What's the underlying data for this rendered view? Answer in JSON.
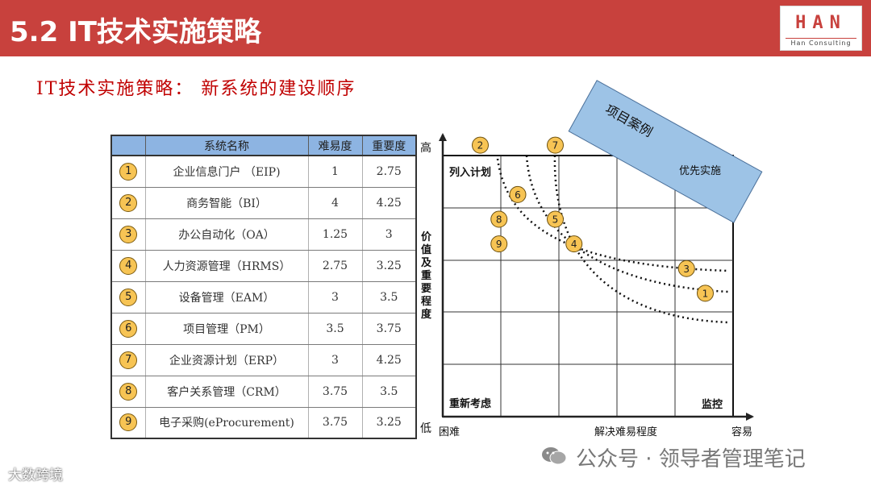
{
  "header": {
    "title": "5.2 IT技术实施策略",
    "logo_text": "HAN",
    "logo_sub": "Han Consulting"
  },
  "subtitle": "IT技术实施策略：  新系统的建设顺序",
  "table": {
    "headers": [
      "",
      "系统名称",
      "难易度",
      "重要度"
    ],
    "rows": [
      {
        "num": "1",
        "name": "企业信息门户  （EIP)",
        "difficulty": "1",
        "importance": "2.75"
      },
      {
        "num": "2",
        "name": "商务智能（BI）",
        "difficulty": "4",
        "importance": "4.25"
      },
      {
        "num": "3",
        "name": "办公自动化（OA）",
        "difficulty": "1.25",
        "importance": "3"
      },
      {
        "num": "4",
        "name": "人力资源管理（HRMS）",
        "difficulty": "2.75",
        "importance": "3.25"
      },
      {
        "num": "5",
        "name": "设备管理（EAM）",
        "difficulty": "3",
        "importance": "3.5"
      },
      {
        "num": "6",
        "name": "项目管理（PM）",
        "difficulty": "3.5",
        "importance": "3.75"
      },
      {
        "num": "7",
        "name": "企业资源计划（ERP）",
        "difficulty": "3",
        "importance": "4.25"
      },
      {
        "num": "8",
        "name": "客户关系管理（CRM）",
        "difficulty": "3.75",
        "importance": "3.5"
      },
      {
        "num": "9",
        "name": "电子采购(eProcurement)",
        "difficulty": "3.75",
        "importance": "3.25"
      }
    ]
  },
  "chart": {
    "y_axis_high": "高",
    "y_axis_low": "低",
    "y_axis_label": "价值及重要程度",
    "x_axis_left": "困难",
    "x_axis_label": "解决难易程度",
    "x_axis_right": "容易",
    "quadrant_top_left": "列入计划",
    "quadrant_top_right": "优先实施",
    "quadrant_bottom_left": "重新考虑",
    "quadrant_bottom_right": "监控",
    "banner": "项目案例",
    "banner_color": "#9dc3e6",
    "marker_color": "#f7c454",
    "markers": [
      {
        "num": "1",
        "difficulty": 1,
        "importance": 2.75
      },
      {
        "num": "2",
        "difficulty": 4,
        "importance": 4.25
      },
      {
        "num": "3",
        "difficulty": 1.25,
        "importance": 3
      },
      {
        "num": "4",
        "difficulty": 2.75,
        "importance": 3.25
      },
      {
        "num": "5",
        "difficulty": 3,
        "importance": 3.5
      },
      {
        "num": "6",
        "difficulty": 3.5,
        "importance": 3.75
      },
      {
        "num": "7",
        "difficulty": 3,
        "importance": 4.25
      },
      {
        "num": "8",
        "difficulty": 3.75,
        "importance": 3.5
      },
      {
        "num": "9",
        "difficulty": 3.75,
        "importance": 3.25
      }
    ]
  },
  "footer": {
    "left_mark": "大数跨境",
    "watermark": "公众号 · 领导者管理笔记"
  }
}
